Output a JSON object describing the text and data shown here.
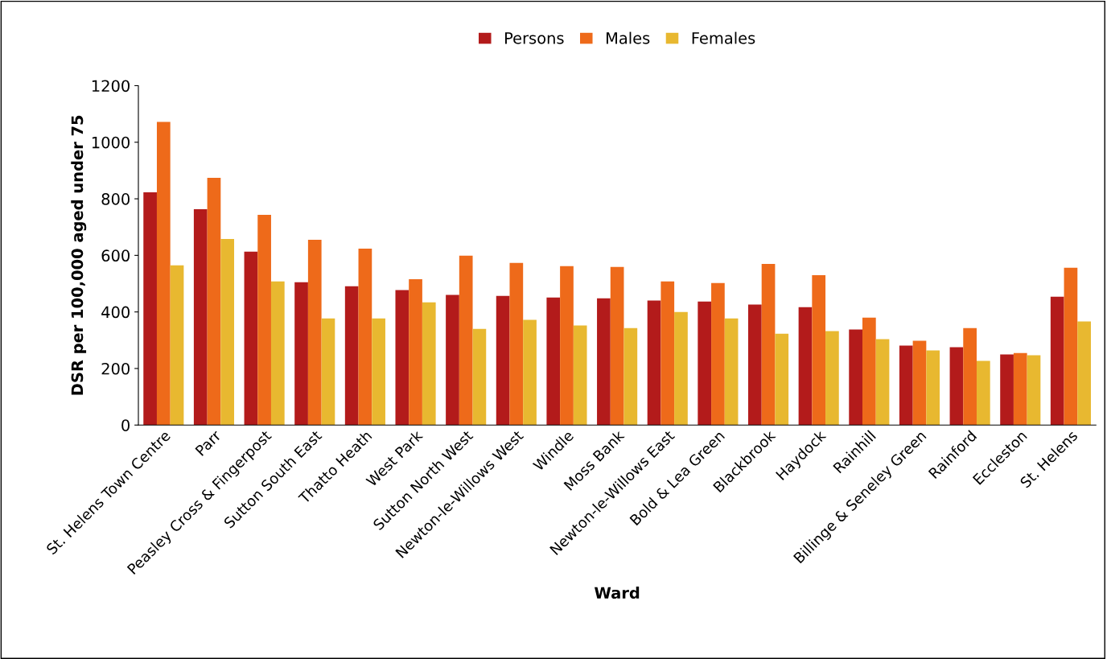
{
  "chart_data": {
    "type": "bar",
    "xlabel": "Ward",
    "ylabel": "DSR per 100,000 aged under 75",
    "categories": [
      "St. Helens Town Centre",
      "Parr",
      "Peasley Cross & Fingerpost",
      "Sutton South East",
      "Thatto Heath",
      "West Park",
      "Sutton North West",
      "Newton-le-Willows West",
      "Windle",
      "Moss Bank",
      "Newton-le-Willows East",
      "Bold & Lea Green",
      "Blackbrook",
      "Haydock",
      "Rainhill",
      "Billinge & Seneley Green",
      "Rainford",
      "Eccleston",
      "St. Helens"
    ],
    "series": [
      {
        "name": "Persons",
        "color": "#b31b1b",
        "values": [
          823,
          763,
          613,
          505,
          491,
          477,
          460,
          457,
          451,
          448,
          440,
          437,
          426,
          417,
          338,
          281,
          275,
          250,
          454
        ]
      },
      {
        "name": "Males",
        "color": "#ee6a1a",
        "values": [
          1072,
          874,
          743,
          655,
          624,
          516,
          599,
          573,
          562,
          559,
          508,
          502,
          570,
          530,
          380,
          298,
          343,
          255,
          556
        ]
      },
      {
        "name": "Females",
        "color": "#e8b830",
        "values": [
          565,
          658,
          508,
          377,
          377,
          434,
          340,
          372,
          352,
          343,
          400,
          377,
          323,
          332,
          304,
          264,
          227,
          247,
          366
        ]
      }
    ],
    "ylim": [
      0,
      1200
    ],
    "yticks": [
      0,
      200,
      400,
      600,
      800,
      1000,
      1200
    ],
    "grid": false,
    "legend": "top"
  }
}
